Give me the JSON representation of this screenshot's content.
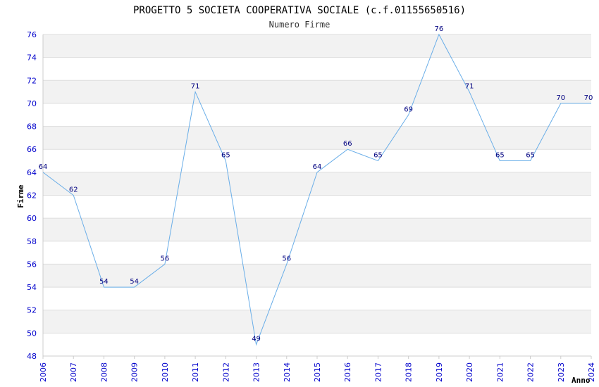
{
  "chart_data": {
    "type": "line",
    "title": "PROGETTO 5 SOCIETA COOPERATIVA SOCIALE (c.f.01155650516)",
    "subtitle": "Numero Firme",
    "xlabel": "Anno",
    "ylabel": "Firme",
    "ylim": [
      48,
      76
    ],
    "ytick_step": 2,
    "grid": true,
    "categories": [
      "2006",
      "2007",
      "2008",
      "2009",
      "2010",
      "2011",
      "2012",
      "2013",
      "2014",
      "2015",
      "2016",
      "2017",
      "2018",
      "2019",
      "2020",
      "2021",
      "2022",
      "2023",
      "2024"
    ],
    "series": [
      {
        "values": [
          64,
          62,
          54,
          54,
          56,
          71,
          65,
          49,
          56,
          64,
          66,
          65,
          69,
          76,
          71,
          65,
          65,
          70,
          70
        ]
      }
    ],
    "colors": {
      "line": "#6aaee8",
      "band": "#f2f2f2",
      "tick": "#0000cc",
      "label": "#000080"
    }
  }
}
